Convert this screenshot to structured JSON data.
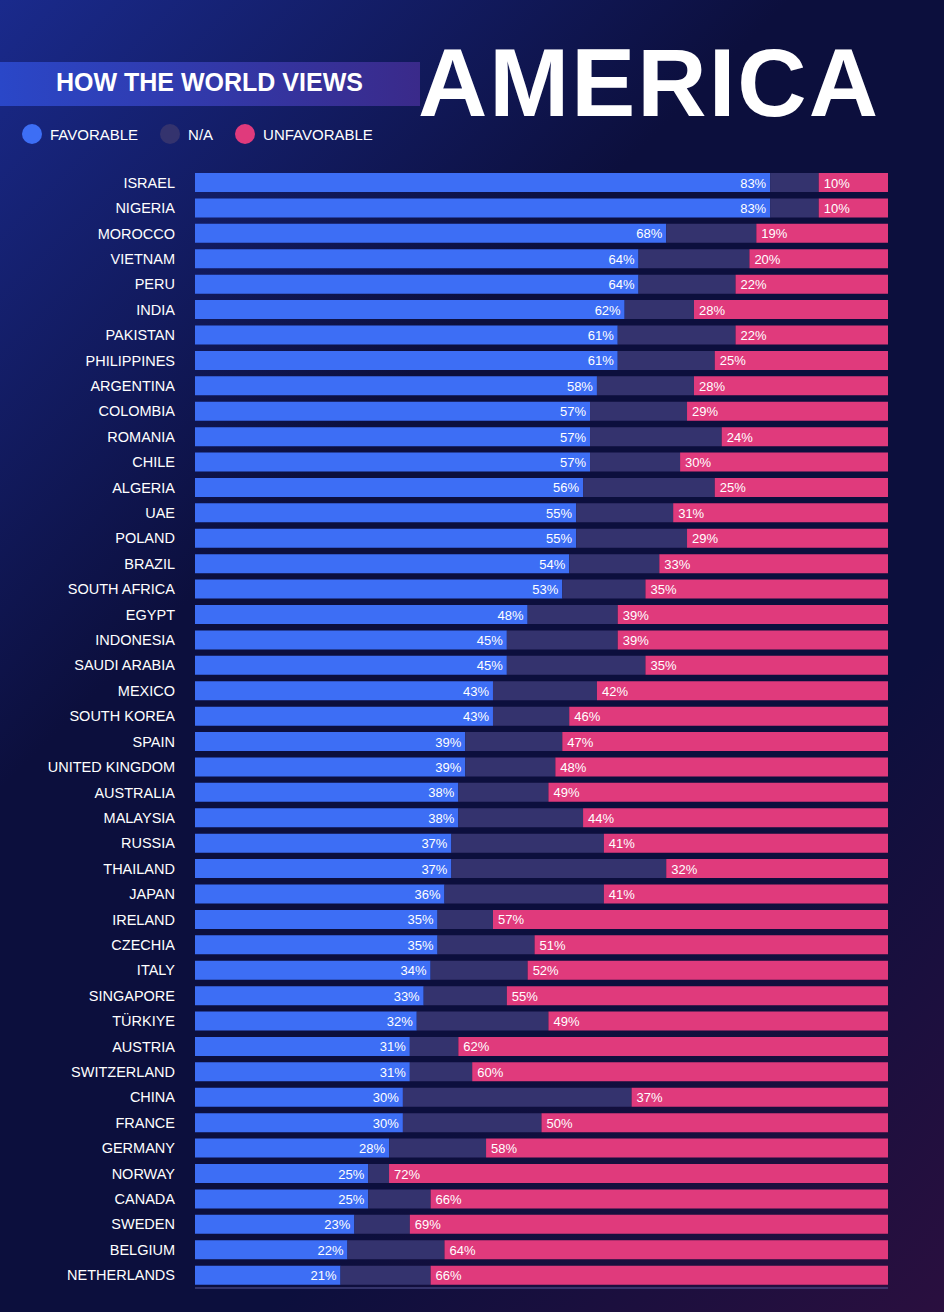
{
  "chart_data": {
    "type": "bar",
    "orientation": "horizontal",
    "stacked": true,
    "title": "AMERICA",
    "subtitle": "HOW THE WORLD VIEWS",
    "legend": "top-left",
    "tick_labels": "y",
    "grid": false,
    "data_labels": true,
    "xlim": [
      0,
      100
    ],
    "categories": [
      "ISRAEL",
      "NIGERIA",
      "MOROCCO",
      "VIETNAM",
      "PERU",
      "INDIA",
      "PAKISTAN",
      "PHILIPPINES",
      "ARGENTINA",
      "COLOMBIA",
      "ROMANIA",
      "CHILE",
      "ALGERIA",
      "UAE",
      "POLAND",
      "BRAZIL",
      "SOUTH AFRICA",
      "EGYPT",
      "INDONESIA",
      "SAUDI ARABIA",
      "MEXICO",
      "SOUTH KOREA",
      "SPAIN",
      "UNITED KINGDOM",
      "AUSTRALIA",
      "MALAYSIA",
      "RUSSIA",
      "THAILAND",
      "JAPAN",
      "IRELAND",
      "CZECHIA",
      "ITALY",
      "SINGAPORE",
      "TÜRKIYE",
      "AUSTRIA",
      "SWITZERLAND",
      "CHINA",
      "FRANCE",
      "GERMANY",
      "NORWAY",
      "CANADA",
      "SWEDEN",
      "BELGIUM",
      "NETHERLANDS"
    ],
    "series": [
      {
        "name": "FAVORABLE",
        "color": "#3d6ef5",
        "data_labels": true,
        "values": [
          83,
          83,
          68,
          64,
          64,
          62,
          61,
          61,
          58,
          57,
          57,
          57,
          56,
          55,
          55,
          54,
          53,
          48,
          45,
          45,
          43,
          43,
          39,
          39,
          38,
          38,
          37,
          37,
          36,
          35,
          35,
          34,
          33,
          32,
          31,
          31,
          30,
          30,
          28,
          25,
          25,
          23,
          22,
          21
        ],
        "value_labels": [
          "83%",
          "83%",
          "68%",
          "64%",
          "64%",
          "62%",
          "61%",
          "61%",
          "58%",
          "57%",
          "57%",
          "57%",
          "56%",
          "55%",
          "55%",
          "54%",
          "53%",
          "48%",
          "45%",
          "45%",
          "43%",
          "43%",
          "39%",
          "39%",
          "38%",
          "38%",
          "37%",
          "37%",
          "36%",
          "35%",
          "35%",
          "34%",
          "33%",
          "32%",
          "31%",
          "31%",
          "30%",
          "30%",
          "28%",
          "25%",
          "25%",
          "23%",
          "22%",
          "21%"
        ]
      },
      {
        "name": "N/A",
        "color": "#34336e",
        "data_labels": false,
        "values": [
          7,
          7,
          13,
          16,
          14,
          10,
          17,
          14,
          14,
          14,
          19,
          13,
          19,
          14,
          16,
          13,
          12,
          13,
          16,
          20,
          15,
          11,
          14,
          13,
          13,
          18,
          22,
          31,
          23,
          8,
          14,
          14,
          12,
          19,
          7,
          9,
          33,
          20,
          14,
          3,
          9,
          8,
          14,
          13
        ]
      },
      {
        "name": "UNFAVORABLE",
        "color": "#e03a7c",
        "data_labels": true,
        "values": [
          10,
          10,
          19,
          20,
          22,
          28,
          22,
          25,
          28,
          29,
          24,
          30,
          25,
          31,
          29,
          33,
          35,
          39,
          39,
          35,
          42,
          46,
          47,
          48,
          49,
          44,
          41,
          32,
          41,
          57,
          51,
          52,
          55,
          49,
          62,
          60,
          37,
          50,
          58,
          72,
          66,
          69,
          64,
          66
        ],
        "value_labels": [
          "10%",
          "10%",
          "19%",
          "20%",
          "22%",
          "28%",
          "22%",
          "25%",
          "28%",
          "29%",
          "24%",
          "30%",
          "25%",
          "31%",
          "29%",
          "33%",
          "35%",
          "39%",
          "39%",
          "35%",
          "42%",
          "46%",
          "47%",
          "48%",
          "49%",
          "44%",
          "41%",
          "32%",
          "41%",
          "57%",
          "51%",
          "52%",
          "55%",
          "49%",
          "62%",
          "60%",
          "37%",
          "50%",
          "58%",
          "72%",
          "66%",
          "69%",
          "64%",
          "66%"
        ]
      }
    ]
  }
}
